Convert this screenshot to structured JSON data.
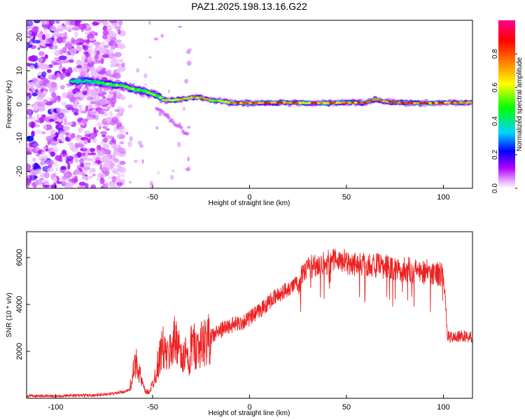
{
  "chart_data": [
    {
      "type": "heatmap",
      "title": "PAZ1.2025.198.13.16.G22",
      "xlabel": "Height of straight line (km)",
      "ylabel": "Frequency (Hz)",
      "xlim": [
        -115,
        115
      ],
      "ylim": [
        -25,
        25
      ],
      "xticks": [
        "-100",
        "-50",
        "0",
        "50",
        "100"
      ],
      "yticks": [
        "-20",
        "-10",
        "0",
        "10",
        "20"
      ],
      "colorbar": {
        "label": "Normalized spectral amplitude",
        "range": [
          0.0,
          1.0
        ],
        "ticks": [
          "0.0",
          "0.2",
          "0.4",
          "0.6",
          "0.8"
        ],
        "colormap": [
          "#ffffff",
          "#b400ff",
          "#0000ff",
          "#00d4ff",
          "#00ff00",
          "#ffff00",
          "#ff8000",
          "#ff0000",
          "#ff0080"
        ]
      },
      "ridge": {
        "x": [
          -95,
          -85,
          -78,
          -72,
          -65,
          -60,
          -55,
          -50,
          -47,
          -45,
          -40,
          -35,
          -30,
          -25,
          -20,
          -15,
          -10,
          0,
          10,
          20,
          30,
          40,
          50,
          60,
          65,
          70,
          80,
          90,
          100,
          110,
          115
        ],
        "y": [
          6.5,
          7,
          6.5,
          6,
          5.5,
          4.5,
          4,
          3,
          2.5,
          1.3,
          1.2,
          1.5,
          2,
          2,
          1.2,
          1,
          0.5,
          0.3,
          0.5,
          0.5,
          0.4,
          0.4,
          0.5,
          0.5,
          1.5,
          0.8,
          0.5,
          0.3,
          0.5,
          0.5,
          0.5
        ]
      },
      "noise_region_x": [
        -115,
        -65
      ]
    },
    {
      "type": "line",
      "xlabel": "Height of straight line (km)",
      "ylabel": "SNR (10 * v/v)",
      "xlim": [
        -115,
        115
      ],
      "ylim": [
        0,
        7100
      ],
      "xticks": [
        "-100",
        "-50",
        "0",
        "50",
        "100"
      ],
      "yticks": [
        "2000",
        "4000",
        "6000"
      ],
      "color": "#ee2222",
      "series": [
        {
          "x": [
            -115,
            -100,
            -90,
            -80,
            -70,
            -65,
            -62,
            -60,
            -58,
            -56,
            -54,
            -52,
            -50,
            -48,
            -45,
            -42,
            -40,
            -37,
            -35,
            -33,
            -31,
            -30,
            -28,
            -25,
            -20,
            -15,
            -10,
            -5,
            0,
            5,
            10,
            15,
            20,
            25,
            28,
            30,
            35,
            40,
            45,
            50,
            55,
            60,
            65,
            70,
            75,
            80,
            85,
            90,
            95,
            99,
            100,
            101,
            102,
            103,
            105,
            110,
            115
          ],
          "values": [
            100,
            100,
            120,
            130,
            200,
            280,
            350,
            1100,
            1600,
            800,
            300,
            250,
            600,
            1200,
            2200,
            1700,
            2300,
            2600,
            1500,
            2000,
            1200,
            2400,
            2200,
            2300,
            2600,
            2900,
            3100,
            3200,
            3400,
            3700,
            4100,
            4400,
            4700,
            4900,
            5300,
            5600,
            5700,
            5800,
            5900,
            5800,
            5750,
            5700,
            5650,
            5600,
            5500,
            5500,
            5450,
            5400,
            5350,
            5300,
            5200,
            4200,
            2700,
            2600,
            2600,
            2650,
            2600
          ]
        }
      ]
    }
  ]
}
